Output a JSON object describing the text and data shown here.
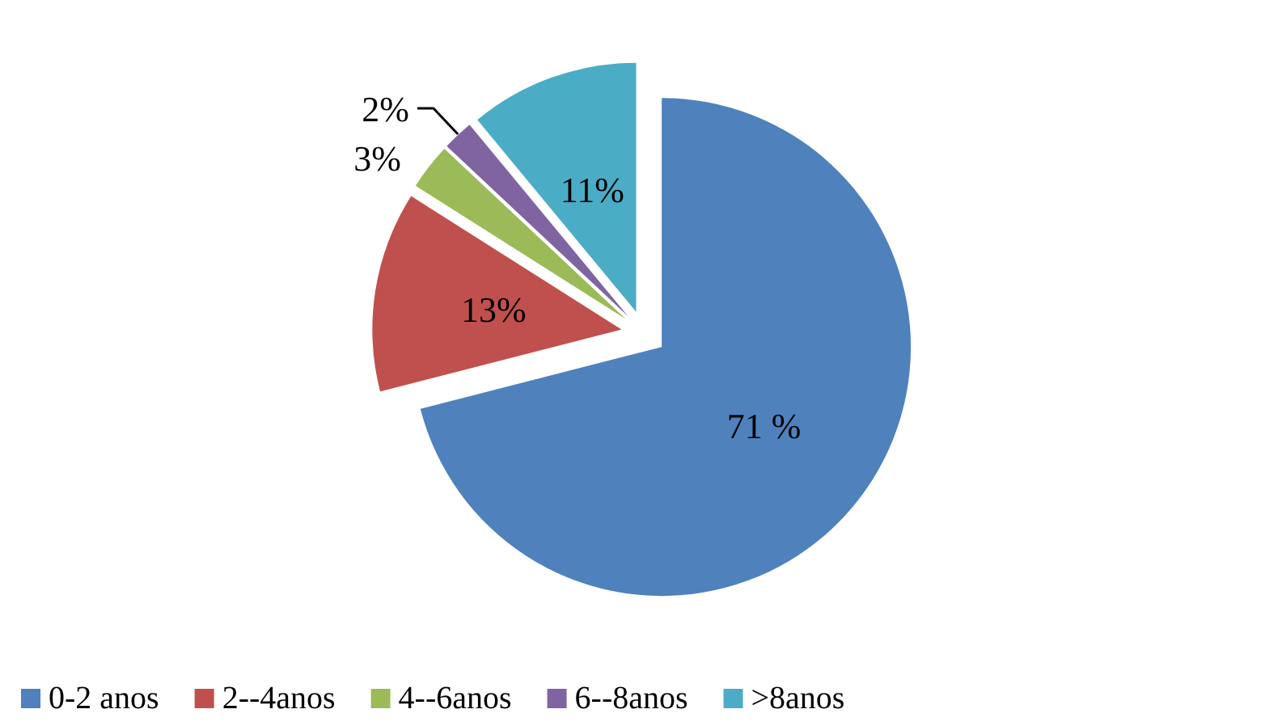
{
  "chart_data": {
    "type": "pie",
    "categories": [
      "0-2 anos",
      "2--4anos",
      "4--6anos",
      "6--8anos",
      ">8anos"
    ],
    "values": [
      71,
      13,
      3,
      2,
      11
    ],
    "colors": [
      "#4f81bd",
      "#c0504d",
      "#9bbb59",
      "#8064a2",
      "#4bacc6"
    ],
    "value_labels": [
      "71 %",
      "13%",
      "3%",
      "2%",
      "11%"
    ],
    "legend": "bottom"
  }
}
